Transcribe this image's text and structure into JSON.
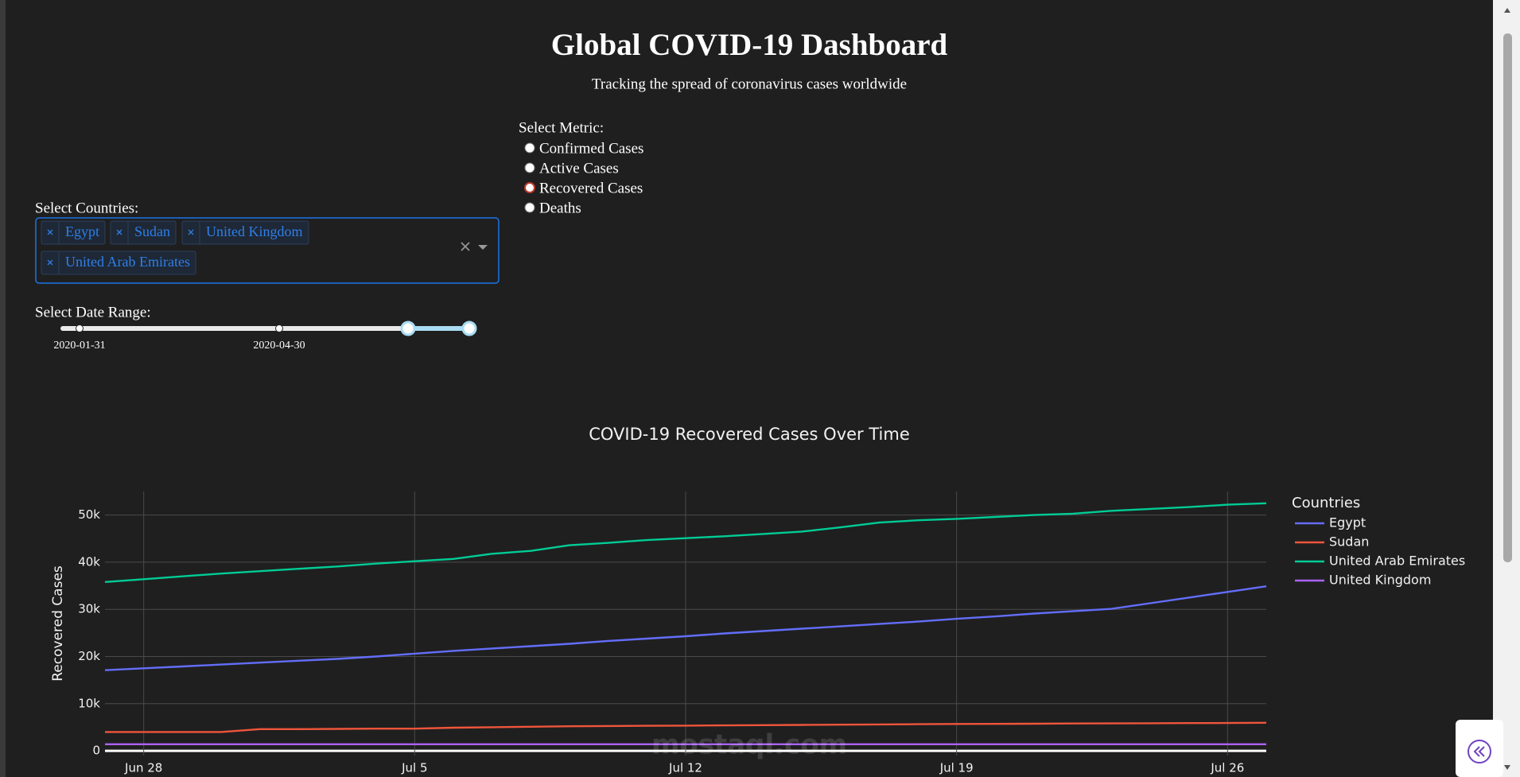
{
  "header": {
    "title": "Global COVID-19 Dashboard",
    "subtitle": "Tracking the spread of coronavirus cases worldwide"
  },
  "controls": {
    "metric_label": "Select Metric:",
    "metric_options": [
      "Confirmed Cases",
      "Active Cases",
      "Recovered Cases",
      "Deaths"
    ],
    "metric_selected": 2,
    "countries_label": "Select Countries:",
    "countries": [
      "Egypt",
      "Sudan",
      "United Kingdom",
      "United Arab Emirates"
    ],
    "date_label": "Select Date Range:",
    "date_marks": [
      "2020-01-31",
      "2020-04-30"
    ]
  },
  "watermark": "mostaql.com",
  "chart_data": {
    "type": "line",
    "title": "COVID-19 Recovered Cases Over Time",
    "y_label": "Recovered Cases",
    "legend_title": "Countries",
    "legend": "right",
    "grid": true,
    "x": [
      "Jun 27",
      "Jun 28",
      "Jun 29",
      "Jun 30",
      "Jul 1",
      "Jul 2",
      "Jul 3",
      "Jul 4",
      "Jul 5",
      "Jul 6",
      "Jul 7",
      "Jul 8",
      "Jul 9",
      "Jul 10",
      "Jul 11",
      "Jul 12",
      "Jul 13",
      "Jul 14",
      "Jul 15",
      "Jul 16",
      "Jul 17",
      "Jul 18",
      "Jul 19",
      "Jul 20",
      "Jul 21",
      "Jul 22",
      "Jul 23",
      "Jul 24",
      "Jul 25",
      "Jul 26",
      "Jul 27"
    ],
    "xticks": [
      "Jun 28",
      "Jul 5",
      "Jul 12",
      "Jul 19",
      "Jul 26"
    ],
    "ylim": [
      -1000,
      55000
    ],
    "yticks": [
      0,
      {
        "value": 10000,
        "label": "10k"
      },
      {
        "value": 20000,
        "label": "20k"
      },
      {
        "value": 30000,
        "label": "30k"
      },
      {
        "value": 40000,
        "label": "40k"
      },
      {
        "value": 50000,
        "label": "50k"
      }
    ],
    "series": [
      {
        "name": "Egypt",
        "color": "#636efa",
        "values": [
          17100,
          17500,
          17900,
          18300,
          18700,
          19100,
          19500,
          20000,
          20600,
          21200,
          21700,
          22200,
          22700,
          23300,
          23800,
          24300,
          24900,
          25400,
          25900,
          26400,
          26900,
          27400,
          28000,
          28500,
          29100,
          29600,
          30100,
          31300,
          32500,
          33700,
          34900
        ]
      },
      {
        "name": "Sudan",
        "color": "#ef553b",
        "values": [
          4000,
          4000,
          4000,
          4000,
          4600,
          4600,
          4650,
          4700,
          4700,
          4900,
          5000,
          5100,
          5200,
          5250,
          5300,
          5350,
          5400,
          5450,
          5500,
          5550,
          5600,
          5650,
          5700,
          5720,
          5750,
          5800,
          5820,
          5850,
          5880,
          5900,
          5950
        ]
      },
      {
        "name": "United Arab Emirates",
        "color": "#00cc96",
        "values": [
          35800,
          36400,
          37000,
          37600,
          38100,
          38600,
          39100,
          39700,
          40200,
          40700,
          41800,
          42400,
          43600,
          44100,
          44700,
          45100,
          45500,
          46000,
          46500,
          47400,
          48400,
          48900,
          49200,
          49600,
          50000,
          50300,
          50900,
          51300,
          51700,
          52200,
          52500
        ]
      },
      {
        "name": "United Kingdom",
        "color": "#ab63fa",
        "values": [
          1400,
          1400,
          1400,
          1400,
          1400,
          1400,
          1400,
          1400,
          1400,
          1400,
          1400,
          1400,
          1400,
          1400,
          1400,
          1400,
          1400,
          1400,
          1400,
          1400,
          1400,
          1400,
          1400,
          1400,
          1400,
          1400,
          1400,
          1400,
          1400,
          1400,
          1400
        ]
      }
    ]
  }
}
